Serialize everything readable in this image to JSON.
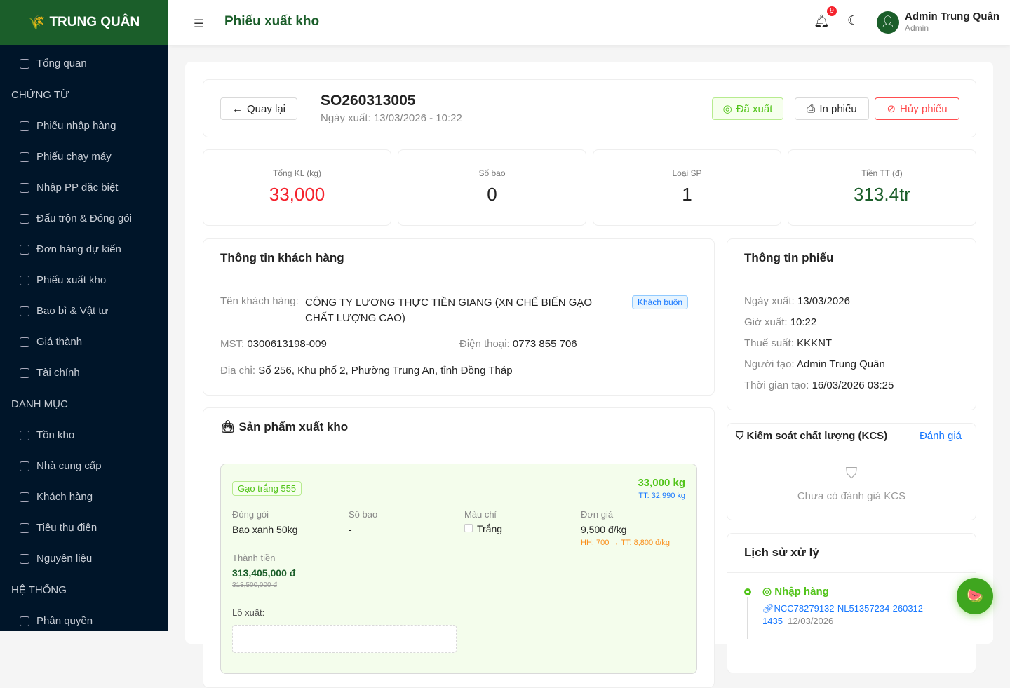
{
  "brand": "TRUNG QUÂN",
  "sidebar": {
    "items": [
      {
        "label": "Tổng quan",
        "icon": "dashboard-icon"
      },
      {
        "section": "CHỨNG TỪ"
      },
      {
        "label": "Phiếu nhập hàng",
        "icon": "edit-icon"
      },
      {
        "label": "Phiếu chạy máy",
        "icon": "tool-icon"
      },
      {
        "label": "Nhập PP đặc biệt",
        "icon": "cluster-icon"
      },
      {
        "label": "Đấu trộn & Đóng gói",
        "icon": "experiment-icon"
      },
      {
        "label": "Đơn hàng dự kiến",
        "icon": "file-icon"
      },
      {
        "label": "Phiếu xuất kho",
        "icon": "export-icon"
      },
      {
        "label": "Bao bì & Vật tư",
        "icon": "inbox-icon"
      },
      {
        "label": "Giá thành",
        "icon": "calculator-icon"
      },
      {
        "label": "Tài chính",
        "icon": "wallet-icon"
      },
      {
        "section": "DANH MỤC"
      },
      {
        "label": "Tồn kho",
        "icon": "database-icon"
      },
      {
        "label": "Nhà cung cấp",
        "icon": "shop-icon"
      },
      {
        "label": "Khách hàng",
        "icon": "team-icon"
      },
      {
        "label": "Tiêu thụ điện",
        "icon": "thunderbolt-icon"
      },
      {
        "label": "Nguyên liệu",
        "icon": "appstore-icon"
      },
      {
        "section": "HỆ THỐNG"
      },
      {
        "label": "Phân quyền",
        "icon": "safety-icon"
      }
    ]
  },
  "header": {
    "title": "Phiếu xuất kho",
    "notifications": "9",
    "user_name": "Admin Trung Quân",
    "user_role": "Admin"
  },
  "doc": {
    "back": "Quay lại",
    "code": "SO260313005",
    "date": "Ngày xuất: 13/03/2026 - 10:22",
    "status": "Đã xuất",
    "print": "In phiếu",
    "cancel": "Hủy phiếu"
  },
  "stats": [
    {
      "label": "Tổng KL (kg)",
      "value": "33,000",
      "color": "#f5222d"
    },
    {
      "label": "Số bao",
      "value": "0",
      "color": "#222"
    },
    {
      "label": "Loại SP",
      "value": "1",
      "color": "#222"
    },
    {
      "label": "Tiền TT (đ)",
      "value": "313.4tr",
      "color": "#1b5e2a"
    }
  ],
  "customer": {
    "title": "Thông tin khách hàng",
    "name_label": "Tên khách hàng:",
    "name": "CÔNG TY LƯƠNG THỰC TIỀN GIANG (XN CHẾ BIẾN GẠO CHẤT LƯỢNG CAO)",
    "type": "Khách buôn",
    "mst_label": "MST:",
    "mst": "0300613198-009",
    "phone_label": "Điện thoại:",
    "phone": "0773 855 706",
    "addr_label": "Địa chỉ:",
    "addr": "Số 256, Khu phố 2, Phường Trung An, tỉnh Đồng Tháp"
  },
  "products": {
    "title": "Sản phẩm xuất kho",
    "item": {
      "name": "Gạo trắng 555",
      "qty": "33,000 kg",
      "qty_tt": "TT: 32,990 kg",
      "pack_label": "Đóng gói",
      "pack": "Bao xanh 50kg",
      "bags_label": "Số bao",
      "bags": "-",
      "color_label": "Màu chỉ",
      "color": "Trắng",
      "price_label": "Đơn giá",
      "price": "9,500 đ/kg",
      "price_note": "HH: 700 → TT: 8,800 đ/kg",
      "total_label": "Thành tiền",
      "total": "313,405,000 đ",
      "total_old": "313,500,000 đ",
      "lot_label": "Lô xuất:"
    }
  },
  "info": {
    "title": "Thông tin phiếu",
    "rows": [
      {
        "label": "Ngày xuất:",
        "value": "13/03/2026"
      },
      {
        "label": "Giờ xuất:",
        "value": "10:22"
      },
      {
        "label": "Thuế suất:",
        "value": "KKKNT"
      },
      {
        "label": "Người tạo:",
        "value": "Admin Trung Quân"
      },
      {
        "label": "Thời gian tạo:",
        "value": "16/03/2026 03:25"
      }
    ]
  },
  "kcs": {
    "title": "Kiểm soát chất lượng (KCS)",
    "action": "Đánh giá",
    "empty": "Chưa có đánh giá KCS"
  },
  "history": {
    "title": "Lịch sử xử lý",
    "items": [
      {
        "status": "Nhập hàng",
        "ref": "NCC78279132-NL51357234-260312-1435",
        "date": "12/03/2026"
      }
    ]
  }
}
